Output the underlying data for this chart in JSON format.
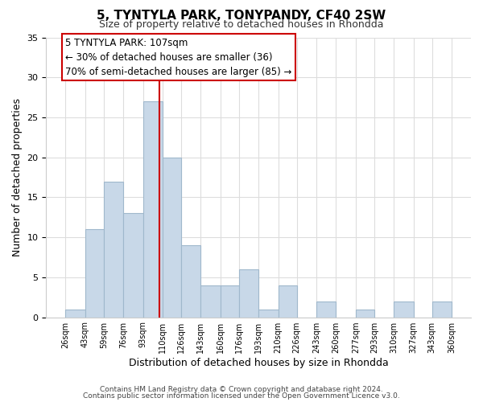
{
  "title": "5, TYNTYLA PARK, TONYPANDY, CF40 2SW",
  "subtitle": "Size of property relative to detached houses in Rhondda",
  "xlabel": "Distribution of detached houses by size in Rhondda",
  "ylabel": "Number of detached properties",
  "bar_color": "#c8d8e8",
  "bar_edgecolor": "#a0b8cc",
  "bin_edges": [
    26,
    43,
    59,
    76,
    93,
    110,
    126,
    143,
    160,
    176,
    193,
    210,
    226,
    243,
    260,
    277,
    293,
    310,
    327,
    343,
    360
  ],
  "counts": [
    1,
    11,
    17,
    13,
    27,
    20,
    9,
    4,
    4,
    6,
    1,
    4,
    0,
    2,
    0,
    1,
    0,
    2,
    0,
    2
  ],
  "tick_labels": [
    "26sqm",
    "43sqm",
    "59sqm",
    "76sqm",
    "93sqm",
    "110sqm",
    "126sqm",
    "143sqm",
    "160sqm",
    "176sqm",
    "193sqm",
    "210sqm",
    "226sqm",
    "243sqm",
    "260sqm",
    "277sqm",
    "293sqm",
    "310sqm",
    "327sqm",
    "343sqm",
    "360sqm"
  ],
  "property_value": 107,
  "vline_color": "#cc0000",
  "annotation_box_edgecolor": "#cc0000",
  "annotation_title": "5 TYNTYLA PARK: 107sqm",
  "annotation_line1": "← 30% of detached houses are smaller (36)",
  "annotation_line2": "70% of semi-detached houses are larger (85) →",
  "ylim": [
    0,
    35
  ],
  "yticks": [
    0,
    5,
    10,
    15,
    20,
    25,
    30,
    35
  ],
  "footer1": "Contains HM Land Registry data © Crown copyright and database right 2024.",
  "footer2": "Contains public sector information licensed under the Open Government Licence v3.0.",
  "background_color": "#ffffff",
  "grid_color": "#dddddd"
}
